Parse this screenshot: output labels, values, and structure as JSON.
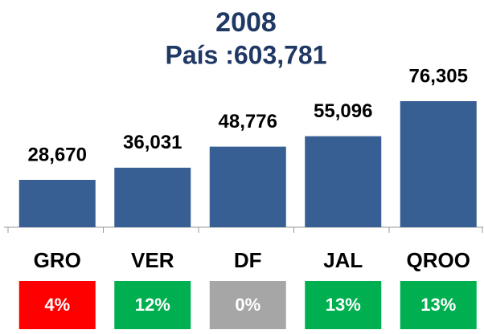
{
  "chart_data": {
    "type": "bar",
    "title": "2008",
    "subtitle": "País :603,781",
    "categories": [
      "GRO",
      "VER",
      "DF",
      "JAL",
      "QROO"
    ],
    "values": [
      28670,
      36031,
      48776,
      55096,
      76305
    ],
    "value_labels": [
      "28,670",
      "36,031",
      "48,776",
      "55,096",
      "76,305"
    ],
    "color": "#375f94",
    "growth": {
      "values": [
        4,
        12,
        0,
        13,
        13
      ],
      "value_labels": [
        "4%",
        "12%",
        "0%",
        "13%",
        "13%"
      ],
      "colors": [
        "#ff0000",
        "#00b050",
        "#a6a6a6",
        "#00b050",
        "#00b050"
      ]
    }
  }
}
